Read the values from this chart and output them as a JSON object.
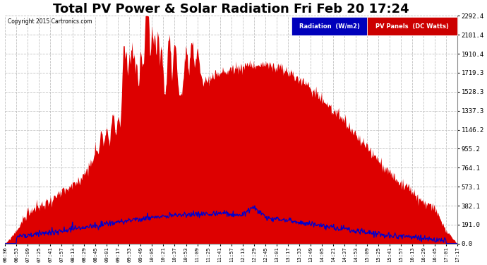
{
  "title": "Total PV Power & Solar Radiation Fri Feb 20 17:24",
  "copyright": "Copyright 2015 Cartronics.com",
  "ylabel_right": [
    "2292.4",
    "2101.4",
    "1910.4",
    "1719.3",
    "1528.3",
    "1337.3",
    "1146.2",
    "955.2",
    "764.1",
    "573.1",
    "382.1",
    "191.0",
    "0.0"
  ],
  "ymax": 2292.4,
  "ymin": 0.0,
  "legend_radiation_label": "Radiation  (W/m2)",
  "legend_pv_label": "PV Panels  (DC Watts)",
  "legend_radiation_bg": "#0000bb",
  "legend_pv_bg": "#cc0000",
  "background_color": "#ffffff",
  "plot_bg": "#ffffff",
  "grid_color": "#bbbbbb",
  "fill_color": "#dd0000",
  "line_color": "#0000cc",
  "title_fontsize": 13,
  "x_tick_labels": [
    "06:36",
    "06:53",
    "07:09",
    "07:25",
    "07:41",
    "07:57",
    "08:13",
    "08:29",
    "08:45",
    "09:01",
    "09:17",
    "09:33",
    "09:49",
    "10:05",
    "10:21",
    "10:37",
    "10:53",
    "11:09",
    "11:25",
    "11:41",
    "11:57",
    "12:13",
    "12:29",
    "12:45",
    "13:01",
    "13:17",
    "13:33",
    "13:49",
    "14:05",
    "14:21",
    "14:37",
    "14:53",
    "15:09",
    "15:25",
    "15:41",
    "15:57",
    "16:13",
    "16:29",
    "16:45",
    "17:01",
    "17:17"
  ]
}
